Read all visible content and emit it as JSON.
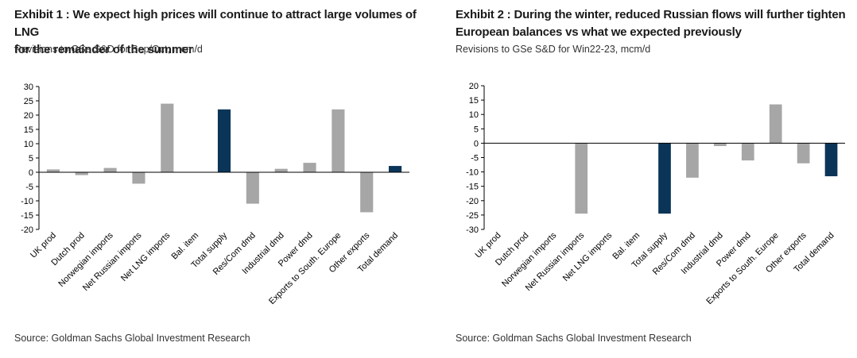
{
  "exhibit1": {
    "title_line1": "Exhibit 1 : We expect high prices will continue to attract large volumes of LNG",
    "title_line2": "for the remainder of the summer",
    "subtitle": "Revisions to GSe S&D for Sep/Oct, mcm/d",
    "source": "Source: Goldman Sachs Global Investment Research"
  },
  "exhibit2": {
    "title_line1": "Exhibit 2 : During the winter, reduced Russian flows will further tighten",
    "title_line2": "European balances vs what we expected previously",
    "subtitle": "Revisions to GSe S&D for Win22-23, mcm/d",
    "source": "Source: Goldman Sachs Global Investment Research"
  },
  "colors": {
    "grey_bar": "#a6a6a6",
    "highlight_bar": "#0b3558"
  },
  "chart_data": [
    {
      "type": "bar",
      "title": "Exhibit 1 : We expect high prices will continue to attract large volumes of LNG for the remainder of the summer",
      "subtitle": "Revisions to GSe S&D for Sep/Oct, mcm/d",
      "categories": [
        "UK prod",
        "Dutch prod",
        "Norwegian imports",
        "Net Russian imports",
        "Net LNG imports",
        "Bal. item",
        "Total supply",
        "Res/Com dmd",
        "Industrial dmd",
        "Power dmd",
        "Exports to South. Europe",
        "Other exports",
        "Total demand"
      ],
      "values": [
        1,
        -1,
        1.5,
        -4,
        24,
        0,
        22,
        -11,
        1.2,
        3.3,
        22,
        -14,
        2.2
      ],
      "highlight": [
        false,
        false,
        false,
        false,
        false,
        false,
        true,
        false,
        false,
        false,
        false,
        false,
        true
      ],
      "ylim": [
        -20,
        30
      ],
      "yticks": [
        30,
        25,
        20,
        15,
        10,
        5,
        0,
        -5,
        -10,
        -15,
        -20
      ],
      "xlabel": "",
      "ylabel": "",
      "grid": false
    },
    {
      "type": "bar",
      "title": "Exhibit 2 : During the winter, reduced Russian flows will further tighten European balances vs what we expected previously",
      "subtitle": "Revisions to GSe S&D for Win22-23, mcm/d",
      "categories": [
        "UK prod",
        "Dutch prod",
        "Norwegian imports",
        "Net Russian imports",
        "Net LNG imports",
        "Bal. item",
        "Total supply",
        "Res/Com dmd",
        "Industrial dmd",
        "Power dmd",
        "Exports to South. Europe",
        "Other exports",
        "Total demand"
      ],
      "values": [
        0,
        0,
        0,
        -24.5,
        0,
        0,
        -24.5,
        -12,
        -1,
        -6,
        13.5,
        -7,
        -11.5
      ],
      "highlight": [
        false,
        false,
        false,
        false,
        false,
        false,
        true,
        false,
        false,
        false,
        false,
        false,
        true
      ],
      "ylim": [
        -30,
        20
      ],
      "yticks": [
        20,
        15,
        10,
        5,
        0,
        -5,
        -10,
        -15,
        -20,
        -25,
        -30
      ],
      "xlabel": "",
      "ylabel": "",
      "grid": false
    }
  ]
}
